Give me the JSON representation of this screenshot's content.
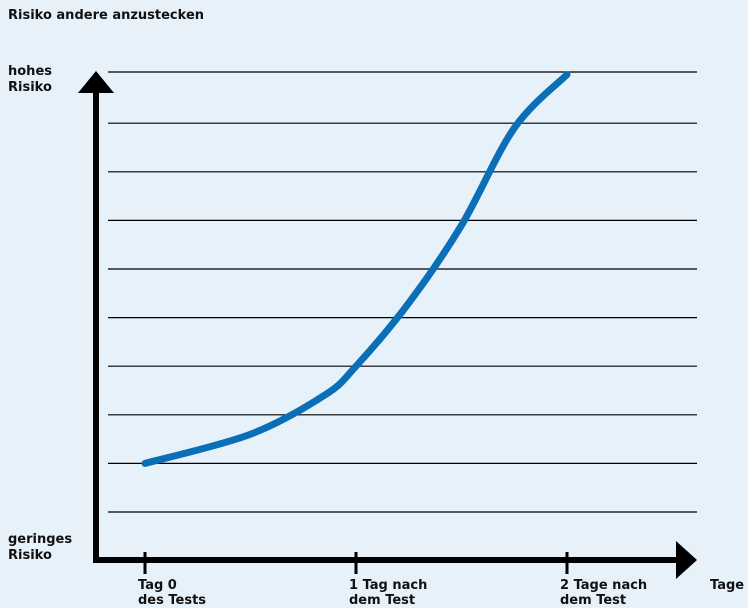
{
  "chart_data": {
    "type": "line",
    "ylabel": "Risiko andere anzustecken",
    "y_top_label": "hohes Risiko",
    "y_bottom_label": "geringes Risiko",
    "xlabel": "Tage",
    "categories": [
      "Tag 0 des Tests",
      "1 Tag nach dem Test",
      "2 Tage nach dem Test"
    ],
    "x": [
      0,
      1,
      2
    ],
    "ylim": [
      0,
      9
    ],
    "grid": true,
    "grid_lines": 9,
    "series": [
      {
        "x": [
          0,
          0.5,
          0.85,
          1,
          1.25,
          1.5,
          1.75,
          2
        ],
        "y": [
          1,
          1.6,
          2.4,
          3.0,
          4.3,
          5.9,
          7.9,
          9
        ]
      }
    ],
    "colors": {
      "line": "#0b6fb8",
      "axis": "#000000",
      "grid": "#000000",
      "background": "#e6f1fa"
    }
  }
}
